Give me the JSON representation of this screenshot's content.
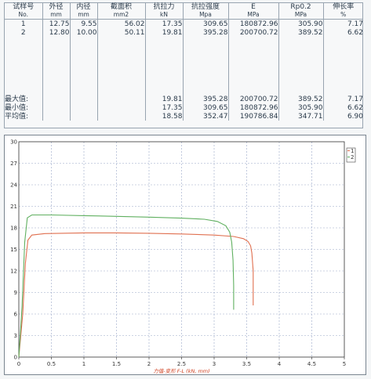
{
  "table": {
    "headers": [
      {
        "name": "试样号",
        "unit": "No."
      },
      {
        "name": "外径",
        "unit": "mm"
      },
      {
        "name": "内径",
        "unit": "mm"
      },
      {
        "name": "截面积",
        "unit": "mm2"
      },
      {
        "name": "抗拉力",
        "unit": "kN"
      },
      {
        "name": "抗拉强度",
        "unit": "Mpa"
      },
      {
        "name": "E",
        "unit": "MPa"
      },
      {
        "name": "Rp0.2",
        "unit": "MPa"
      },
      {
        "name": "伸长率",
        "unit": "%"
      }
    ],
    "rows": [
      [
        "1",
        "12.75",
        "9.55",
        "56.02",
        "17.35",
        "309.65",
        "180872.96",
        "305.90",
        "7.17"
      ],
      [
        "2",
        "12.80",
        "10.00",
        "50.11",
        "19.81",
        "395.28",
        "200700.72",
        "389.52",
        "6.62"
      ]
    ],
    "summary": [
      [
        "最大值:",
        "",
        "",
        "",
        "19.81",
        "395.28",
        "200700.72",
        "389.52",
        "7.17"
      ],
      [
        "最小值:",
        "",
        "",
        "",
        "17.35",
        "309.65",
        "180872.96",
        "305.90",
        "6.62"
      ],
      [
        "平均值:",
        "",
        "",
        "",
        "18.58",
        "352.47",
        "190786.84",
        "347.71",
        "6.90"
      ]
    ]
  },
  "chart_data": {
    "type": "line",
    "xlabel": "力值-变形 F-L (kN, mm)",
    "xlim": [
      0,
      5
    ],
    "ylim": [
      0,
      30
    ],
    "xticks": [
      0,
      0.5,
      1,
      1.5,
      2,
      2.5,
      3,
      3.5,
      4,
      4.5,
      5
    ],
    "xtick_labels": [
      "0",
      "0.5",
      "1",
      "1.5",
      "2",
      "2.5",
      "3",
      "3.5",
      "4",
      "4.5",
      "5"
    ],
    "yticks": [
      0,
      3,
      6,
      9,
      12,
      15,
      18,
      21,
      24,
      27,
      30
    ],
    "ytick_labels": [
      "0",
      "3",
      "6",
      "9",
      "12",
      "15",
      "18",
      "21",
      "24",
      "27",
      "30"
    ],
    "grid": true,
    "legend": [
      "1",
      "2"
    ],
    "legend_position": "top-right",
    "series": [
      {
        "name": "1",
        "color": "#e07050",
        "x": [
          0,
          0.06,
          0.1,
          0.14,
          0.2,
          0.4,
          1.0,
          1.5,
          2.0,
          2.5,
          3.0,
          3.3,
          3.45,
          3.52,
          3.56,
          3.58,
          3.6,
          3.6
        ],
        "y": [
          0,
          6,
          13,
          16.3,
          17.0,
          17.2,
          17.3,
          17.3,
          17.25,
          17.15,
          17.0,
          16.8,
          16.5,
          16.1,
          15.5,
          14.5,
          12.0,
          7.2
        ]
      },
      {
        "name": "2",
        "color": "#60b060",
        "x": [
          0,
          0.05,
          0.09,
          0.13,
          0.2,
          0.5,
          1.0,
          1.5,
          2.0,
          2.5,
          2.85,
          3.05,
          3.18,
          3.24,
          3.27,
          3.29,
          3.3,
          3.3
        ],
        "y": [
          0,
          7,
          16,
          19.4,
          19.8,
          19.8,
          19.7,
          19.6,
          19.5,
          19.35,
          19.2,
          18.9,
          18.3,
          17.4,
          16.0,
          13.5,
          10.0,
          6.6
        ]
      }
    ]
  }
}
